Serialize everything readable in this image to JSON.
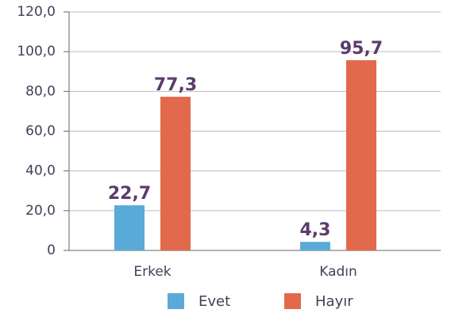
{
  "chart_data": {
    "type": "bar",
    "categories": [
      "Erkek",
      "Kadın"
    ],
    "series": [
      {
        "name": "Evet",
        "color": "#5aaad8",
        "values": [
          22.7,
          4.3
        ],
        "value_labels": [
          "22,7",
          "4,3"
        ]
      },
      {
        "name": "Hayır",
        "color": "#e2694c",
        "values": [
          77.3,
          95.7
        ],
        "value_labels": [
          "77,3",
          "95,7"
        ]
      }
    ],
    "ylim": [
      0,
      120
    ],
    "yticks": [
      0,
      {
        "value": 20,
        "label": "20,0"
      },
      {
        "value": 40,
        "label": "40,0"
      },
      {
        "value": 60,
        "label": "60,0"
      },
      {
        "value": 80,
        "label": "80,0"
      },
      {
        "value": 100,
        "label": "100,0"
      },
      {
        "value": 120,
        "label": "120,0"
      }
    ],
    "grid": true
  }
}
